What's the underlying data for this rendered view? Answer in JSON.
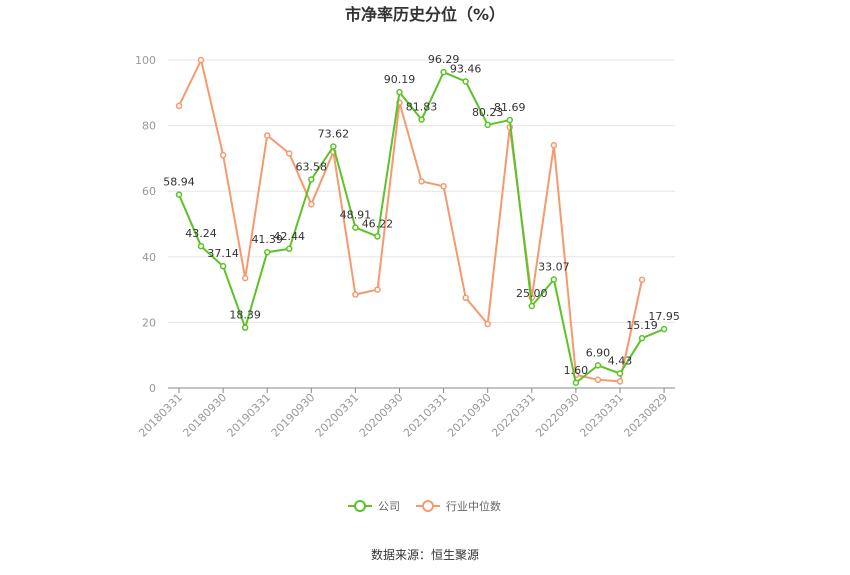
{
  "chart_data": {
    "type": "line",
    "title": "市净率历史分位（%）",
    "source": "数据来源：恒生聚源",
    "ylim": [
      0,
      100
    ],
    "yticks": [
      0,
      20,
      40,
      60,
      80,
      100
    ],
    "grid": true,
    "legend_position": "bottom",
    "x_tick_labels": [
      "20180331",
      "20180930",
      "20190331",
      "20190930",
      "20200331",
      "20200930",
      "20210331",
      "20210930",
      "20220331",
      "20220930",
      "20230331",
      "20230829"
    ],
    "colors": {
      "company": "#5cc326",
      "industry": "#f59a6e",
      "grid": "#e6e6e6",
      "axis": "#888888"
    },
    "series": [
      {
        "name": "公司",
        "values": [
          58.94,
          43.24,
          37.14,
          18.39,
          41.39,
          42.44,
          63.58,
          73.62,
          48.91,
          46.22,
          90.19,
          81.83,
          96.29,
          93.46,
          80.23,
          81.69,
          25.0,
          33.07,
          1.6,
          6.9,
          4.43,
          15.19,
          17.95
        ],
        "labels": [
          "58.94",
          "43.24",
          "37.14",
          "18.39",
          "41.39",
          "42.44",
          "63.58",
          "73.62",
          "48.91",
          "46.22",
          "90.19",
          "81.83",
          "96.29",
          "93.46",
          "80.23",
          "81.69",
          "25.00",
          "33.07",
          "1.60",
          "6.90",
          "4.43",
          "15.19",
          "17.95"
        ]
      },
      {
        "name": "行业中位数",
        "values": [
          86,
          100,
          71,
          33.5,
          77,
          71.5,
          56,
          72,
          28.5,
          30,
          87,
          63,
          61.5,
          27.5,
          19.5,
          79.5,
          27.5,
          74,
          4,
          2.5,
          2,
          33,
          null
        ]
      }
    ]
  }
}
